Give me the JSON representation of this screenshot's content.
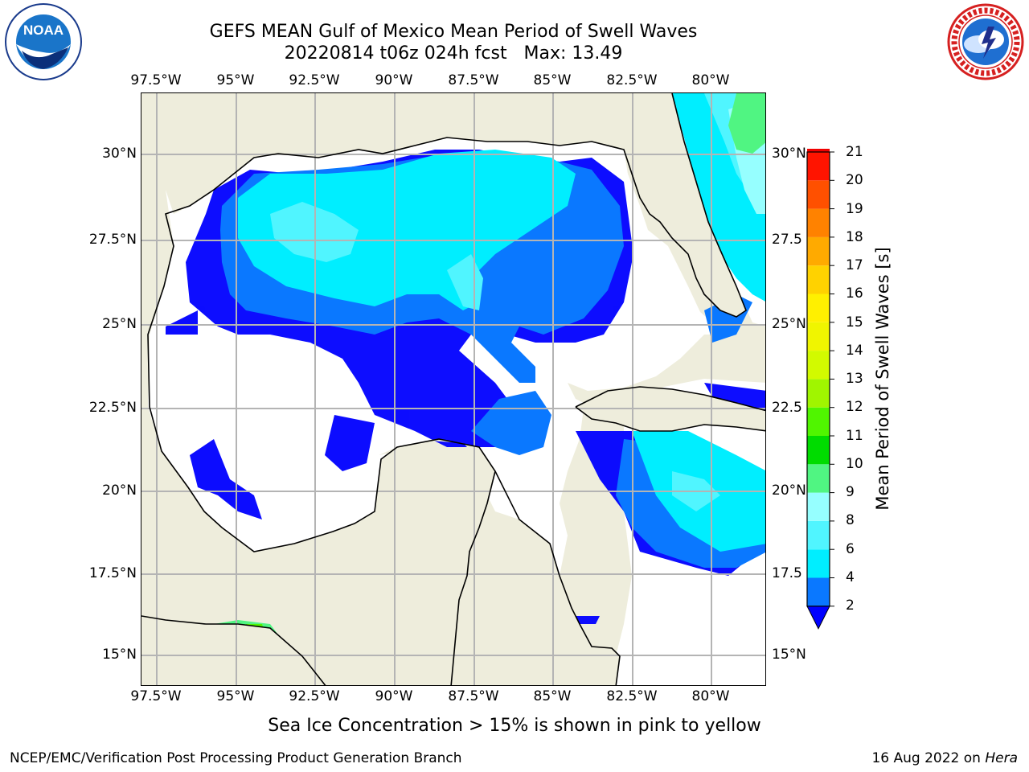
{
  "header": {
    "title_line1": "GEFS MEAN Gulf of Mexico Mean Period of Swell Waves",
    "title_line2": "20220814 t06z 024h fcst   Max: 13.49"
  },
  "logos": {
    "left": {
      "name": "NOAA",
      "text": "NOAA",
      "ring_text": "NATIONAL OCEANIC AND ATMOSPHERIC ADMINISTRATION · U.S. DEPARTMENT OF COMMERCE"
    },
    "right": {
      "name": "National Weather Service",
      "ring_text": "NATIONAL WEATHER SERVICE"
    }
  },
  "map": {
    "longitude_labels": [
      "97.5°W",
      "95°W",
      "92.5°W",
      "90°W",
      "87.5°W",
      "85°W",
      "82.5°W",
      "80°W"
    ],
    "latitude_labels_left": [
      "30°N",
      "27.5°N",
      "25°N",
      "22.5°N",
      "20°N",
      "17.5°N",
      "15°N"
    ],
    "latitude_labels_right": [
      "30°N",
      "27.5",
      "25°N",
      "22.5",
      "20°N",
      "17.5",
      "15°N"
    ],
    "colors": {
      "land": "#eeeddc",
      "ocean": "#ffffff",
      "grid": "#b4b4b4",
      "coast": "#000000"
    }
  },
  "colorbar": {
    "label": "Mean Period of Swell Waves [s]",
    "ticks": [
      "2",
      "4",
      "6",
      "8",
      "9",
      "10",
      "11",
      "12",
      "13",
      "14",
      "15",
      "16",
      "17",
      "18",
      "19",
      "20",
      "21"
    ],
    "colors": [
      "#0000ff",
      "#0a78ff",
      "#00eeff",
      "#50f5ff",
      "#96ffff",
      "#50f582",
      "#00dc00",
      "#50f500",
      "#a0f500",
      "#d2fa00",
      "#f0f500",
      "#fff000",
      "#ffd200",
      "#ffaa00",
      "#ff8200",
      "#ff5000",
      "#ff1400",
      "#f00000"
    ]
  },
  "note": "Sea Ice Concentration > 15% is shown in pink to yellow",
  "footer": {
    "left": "NCEP/EMC/Verification Post Processing Product Generation Branch",
    "date": "16 Aug 2022 on ",
    "host": "Hera"
  }
}
